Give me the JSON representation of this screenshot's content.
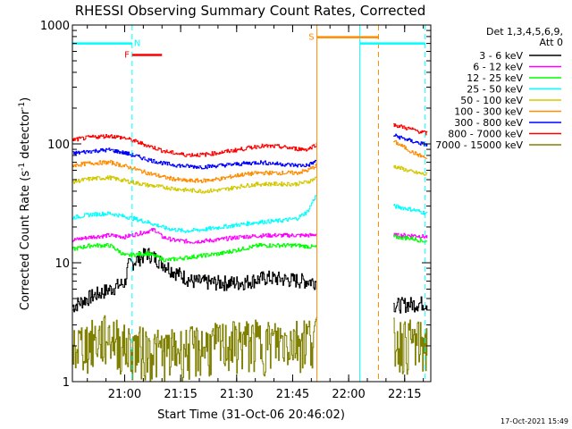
{
  "chart_data": {
    "type": "line",
    "title": "RHESSI Observing Summary Count Rates, Corrected",
    "xlabel": "Start Time (31-Oct-06 20:46:02)",
    "ylabel_parts": [
      "Corrected Count Rate (s",
      "-1",
      " detector",
      "-1",
      ")"
    ],
    "yscale": "log",
    "ylim": [
      1,
      1000
    ],
    "xlim_min": [
      0,
      96
    ],
    "x_ticks": [
      {
        "label": "21:00",
        "min": 14
      },
      {
        "label": "21:15",
        "min": 29
      },
      {
        "label": "21:30",
        "min": 44
      },
      {
        "label": "21:45",
        "min": 59
      },
      {
        "label": "22:00",
        "min": 74
      },
      {
        "label": "22:15",
        "min": 89
      }
    ],
    "y_ticks": [
      {
        "label": "1",
        "value": 1
      },
      {
        "label": "10",
        "value": 10
      },
      {
        "label": "100",
        "value": 100
      },
      {
        "label": "1000",
        "value": 1000
      }
    ],
    "legend_title": [
      "Det 1,3,4,5,6,9,",
      "Att 0"
    ],
    "legend_placement": "right",
    "gaps_min": [
      [
        65.5,
        86
      ]
    ],
    "series": [
      {
        "name": "3 - 6 keV",
        "color": "#000000",
        "points": [
          [
            0,
            4.3
          ],
          [
            5,
            5.2
          ],
          [
            10,
            6.0
          ],
          [
            14,
            6.8
          ],
          [
            15,
            9.5
          ],
          [
            20,
            12.0
          ],
          [
            23,
            10.5
          ],
          [
            27,
            8.5
          ],
          [
            32,
            7.0
          ],
          [
            38,
            6.8
          ],
          [
            45,
            6.8
          ],
          [
            52,
            7.5
          ],
          [
            58,
            7.2
          ],
          [
            64,
            7.0
          ],
          [
            65.5,
            7.0
          ],
          [
            86,
            4.4
          ],
          [
            91,
            4.5
          ],
          [
            95,
            4.6
          ]
        ]
      },
      {
        "name": "6 - 12 keV",
        "color": "#ff00ff",
        "points": [
          [
            0,
            15.5
          ],
          [
            5,
            16.5
          ],
          [
            10,
            17.0
          ],
          [
            14,
            16.5
          ],
          [
            19,
            18.0
          ],
          [
            22,
            19.0
          ],
          [
            24,
            16.5
          ],
          [
            27,
            15.5
          ],
          [
            32,
            15.0
          ],
          [
            38,
            15.5
          ],
          [
            45,
            16.5
          ],
          [
            52,
            17.0
          ],
          [
            58,
            17.0
          ],
          [
            64,
            17.0
          ],
          [
            65.5,
            17.5
          ],
          [
            86,
            17.0
          ],
          [
            91,
            17.0
          ],
          [
            95,
            16.5
          ]
        ]
      },
      {
        "name": "12 - 25 keV",
        "color": "#00ff00",
        "points": [
          [
            0,
            13.0
          ],
          [
            5,
            14.0
          ],
          [
            10,
            14.0
          ],
          [
            14,
            11.5
          ],
          [
            20,
            12.0
          ],
          [
            25,
            10.5
          ],
          [
            30,
            11.0
          ],
          [
            35,
            11.5
          ],
          [
            40,
            12.0
          ],
          [
            45,
            13.0
          ],
          [
            50,
            14.0
          ],
          [
            55,
            14.0
          ],
          [
            60,
            14.0
          ],
          [
            65.5,
            13.5
          ],
          [
            86,
            16.5
          ],
          [
            91,
            16.0
          ],
          [
            95,
            15.0
          ]
        ]
      },
      {
        "name": "25 - 50 keV",
        "color": "#00ffff",
        "points": [
          [
            0,
            24.0
          ],
          [
            5,
            25.5
          ],
          [
            10,
            26.0
          ],
          [
            14,
            24.5
          ],
          [
            20,
            22.0
          ],
          [
            25,
            19.5
          ],
          [
            30,
            18.5
          ],
          [
            35,
            19.0
          ],
          [
            40,
            20.0
          ],
          [
            45,
            21.0
          ],
          [
            50,
            22.0
          ],
          [
            55,
            22.5
          ],
          [
            60,
            23.5
          ],
          [
            63,
            27.0
          ],
          [
            65.5,
            38.0
          ],
          [
            86,
            30.0
          ],
          [
            91,
            28.0
          ],
          [
            95,
            26.0
          ]
        ]
      },
      {
        "name": "50 - 100 keV",
        "color": "#d2c800",
        "points": [
          [
            0,
            48.0
          ],
          [
            5,
            51.0
          ],
          [
            10,
            52.0
          ],
          [
            14,
            49.0
          ],
          [
            20,
            45.0
          ],
          [
            25,
            43.0
          ],
          [
            30,
            41.0
          ],
          [
            35,
            40.0
          ],
          [
            40,
            41.0
          ],
          [
            45,
            44.0
          ],
          [
            50,
            46.0
          ],
          [
            55,
            46.0
          ],
          [
            60,
            46.0
          ],
          [
            63,
            48.0
          ],
          [
            65.5,
            52.0
          ],
          [
            86,
            65.0
          ],
          [
            91,
            58.0
          ],
          [
            95,
            55.0
          ]
        ]
      },
      {
        "name": "100 - 300 keV",
        "color": "#ff8c00",
        "points": [
          [
            0,
            66.0
          ],
          [
            5,
            69.0
          ],
          [
            10,
            70.0
          ],
          [
            14,
            65.0
          ],
          [
            20,
            57.0
          ],
          [
            25,
            52.0
          ],
          [
            30,
            49.0
          ],
          [
            35,
            49.0
          ],
          [
            40,
            51.0
          ],
          [
            45,
            55.0
          ],
          [
            50,
            57.0
          ],
          [
            55,
            57.0
          ],
          [
            60,
            57.0
          ],
          [
            63,
            60.0
          ],
          [
            65.5,
            66.0
          ],
          [
            86,
            105.0
          ],
          [
            91,
            85.0
          ],
          [
            95,
            75.0
          ]
        ]
      },
      {
        "name": "300 - 800 keV",
        "color": "#0000ff",
        "points": [
          [
            0,
            83.0
          ],
          [
            5,
            87.0
          ],
          [
            10,
            89.0
          ],
          [
            14,
            84.0
          ],
          [
            20,
            74.0
          ],
          [
            25,
            68.0
          ],
          [
            30,
            65.0
          ],
          [
            35,
            64.0
          ],
          [
            40,
            66.0
          ],
          [
            45,
            68.0
          ],
          [
            50,
            70.0
          ],
          [
            55,
            68.0
          ],
          [
            60,
            66.0
          ],
          [
            63,
            66.0
          ],
          [
            65.5,
            72.0
          ],
          [
            86,
            118.0
          ],
          [
            91,
            105.0
          ],
          [
            95,
            98.0
          ]
        ]
      },
      {
        "name": "800 - 7000 keV",
        "color": "#ff0000",
        "points": [
          [
            0,
            108.0
          ],
          [
            5,
            114.0
          ],
          [
            10,
            117.0
          ],
          [
            14,
            112.0
          ],
          [
            20,
            97.0
          ],
          [
            25,
            86.0
          ],
          [
            30,
            81.0
          ],
          [
            35,
            81.0
          ],
          [
            40,
            85.0
          ],
          [
            45,
            90.0
          ],
          [
            50,
            96.0
          ],
          [
            55,
            95.0
          ],
          [
            60,
            91.0
          ],
          [
            63,
            90.0
          ],
          [
            65.5,
            100.0
          ],
          [
            86,
            145.0
          ],
          [
            91,
            132.0
          ],
          [
            95,
            122.0
          ]
        ]
      },
      {
        "name": "7000 - 15000 keV",
        "color": "#808000",
        "points": [
          [
            0,
            2.0
          ],
          [
            5,
            2.2
          ],
          [
            10,
            2.5
          ],
          [
            14,
            2.0
          ],
          [
            20,
            1.9
          ],
          [
            25,
            1.8
          ],
          [
            30,
            1.9
          ],
          [
            35,
            2.0
          ],
          [
            40,
            2.1
          ],
          [
            45,
            2.2
          ],
          [
            50,
            2.2
          ],
          [
            55,
            2.2
          ],
          [
            60,
            2.3
          ],
          [
            65.5,
            2.5
          ],
          [
            86,
            2.3
          ],
          [
            91,
            2.2
          ],
          [
            95,
            2.1
          ]
        ]
      }
    ],
    "flag_lines": [
      {
        "label": "N",
        "color": "#00ffff",
        "y": 700,
        "start_min": 0,
        "end_min": 16
      },
      {
        "label": "F",
        "color": "#ff0000",
        "y": 560,
        "start_min": 16,
        "end_min": 24
      },
      {
        "label": "S",
        "color": "#ff8c00",
        "y": 790,
        "start_min": 65.5,
        "end_min": 82
      }
    ],
    "vlines": [
      {
        "min": 16,
        "color": "#00ffff",
        "dashed": true
      },
      {
        "min": 65.5,
        "color": "#ff8c00",
        "dashed": false
      },
      {
        "min": 77,
        "color": "#00ffff",
        "dashed": false
      },
      {
        "min": 82,
        "color": "#ff8c00",
        "dashed": true
      },
      {
        "min": 94.5,
        "color": "#00ffff",
        "dashed": true
      },
      {
        "min": 77,
        "color": "#00ffff",
        "dashed": false,
        "flag_extend_to": 94.5
      }
    ],
    "footer_date": "17-Oct-2021 15:49"
  }
}
